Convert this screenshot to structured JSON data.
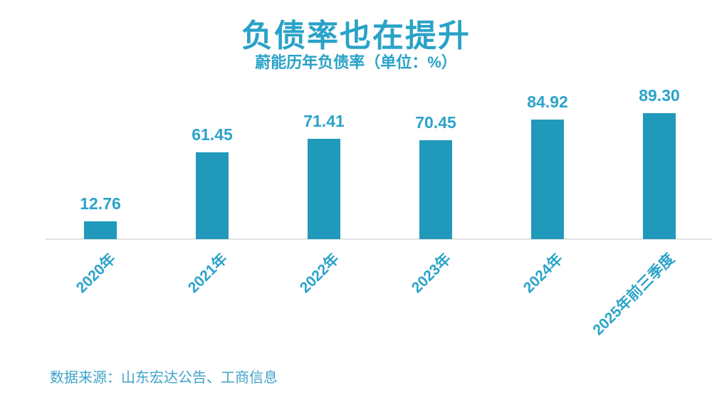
{
  "chart_data": {
    "type": "bar",
    "title": "负债率也在提升",
    "subtitle": "蔚能历年负债率（单位：%）",
    "categories": [
      "2020年",
      "2021年",
      "2022年",
      "2023年",
      "2024年",
      "2025年前三季度"
    ],
    "values": [
      12.76,
      61.45,
      71.41,
      70.45,
      84.92,
      89.3
    ],
    "value_labels": [
      "12.76",
      "61.45",
      "71.41",
      "70.45",
      "84.92",
      "89.30"
    ],
    "xlabel": "",
    "ylabel": "",
    "ylim": [
      0,
      95
    ],
    "grid": false,
    "legend": "none",
    "data_labels": "above-bars",
    "x_tick_rotation": -45
  },
  "footer": {
    "source": "数据来源：山东宏达公告、工商信息"
  },
  "colors": {
    "background": "#ffffff",
    "bar": "#2199ba",
    "title": "#29a2c8",
    "value_label": "#2ba3c9",
    "axis_label": "#2ba3c9",
    "axis_line": "#e2e2e2",
    "source": "#3fa3c8"
  }
}
